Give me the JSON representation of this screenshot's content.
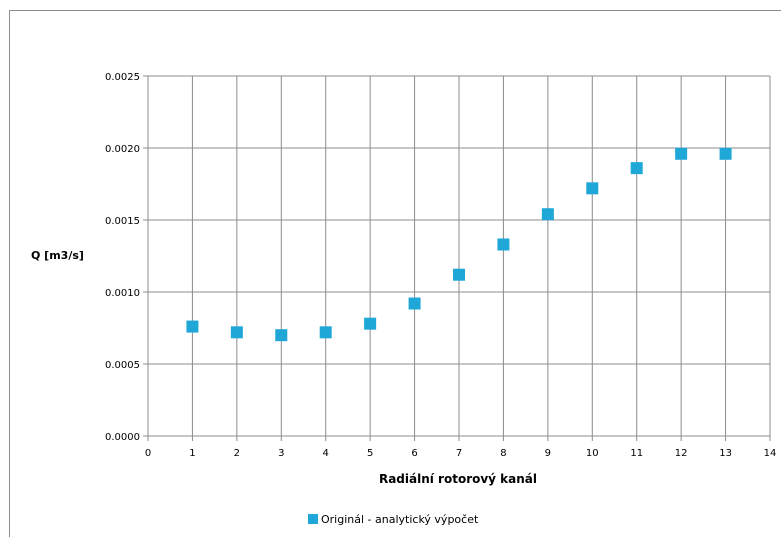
{
  "chart_data": {
    "type": "scatter",
    "title": "",
    "xlabel": "Radiální  rotorový kanál",
    "ylabel": "Q [m3/s]",
    "xlim": [
      0,
      14
    ],
    "ylim": [
      0,
      0.0025
    ],
    "x_ticks": [
      "0",
      "1",
      "2",
      "3",
      "4",
      "5",
      "6",
      "7",
      "8",
      "9",
      "10",
      "11",
      "12",
      "13",
      "14"
    ],
    "y_ticks": [
      "0.0000",
      "0.0005",
      "0.0010",
      "0.0015",
      "0.0020",
      "0.0025"
    ],
    "grid": true,
    "legend_position": "bottom",
    "series": [
      {
        "name": "Originál - analytický výpočet",
        "color": "#1fa7d8",
        "marker": "square",
        "x": [
          1,
          2,
          3,
          4,
          5,
          6,
          7,
          8,
          9,
          10,
          11,
          12,
          13
        ],
        "y": [
          0.00076,
          0.00072,
          0.0007,
          0.00072,
          0.00078,
          0.00092,
          0.00112,
          0.00133,
          0.00154,
          0.00172,
          0.00186,
          0.00196,
          0.00196
        ]
      }
    ]
  }
}
